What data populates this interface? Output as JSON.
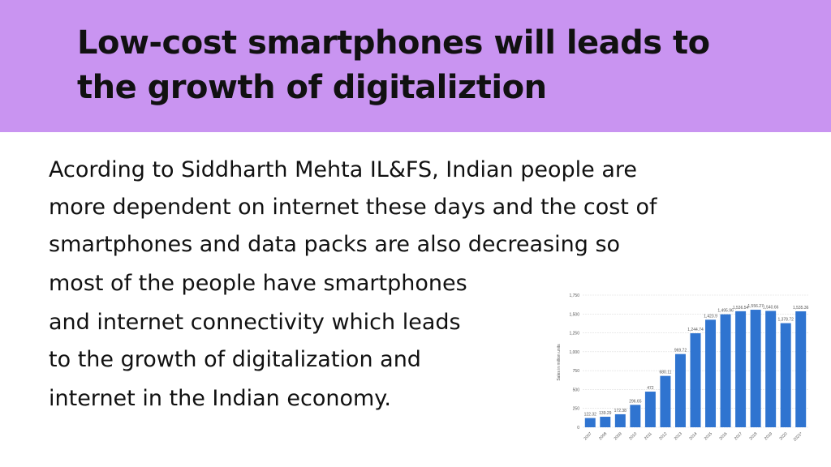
{
  "header": {
    "title": [
      "Low-cost smartphones will leads to",
      "the growth of digitaliztion"
    ]
  },
  "body": {
    "lines": [
      "Acording to Siddharth Mehta IL&FS, Indian people are",
      "more dependent on internet these days and the cost of",
      "smartphones and data packs are also decreasing so",
      "most of the people have smartphones",
      "and internet connectivity which leads",
      "to the growth of digitalization and",
      "internet in the Indian economy."
    ]
  },
  "chart_data": {
    "type": "bar",
    "y_label": "Sales in million units",
    "categories": [
      "2007",
      "2008",
      "2009",
      "2010",
      "2011",
      "2012",
      "2013",
      "2014",
      "2015",
      "2016",
      "2017",
      "2018",
      "2019",
      "2020",
      "2021*"
    ],
    "values": [
      122.32,
      139.29,
      172.38,
      296.65,
      472,
      680.11,
      969.72,
      1244.74,
      1423.9,
      1495.96,
      1536.54,
      1556.27,
      1540.66,
      1378.72,
      1535.36
    ],
    "value_labels": [
      "122.32",
      "139.29",
      "172.38",
      "296.65",
      "472",
      "680.11",
      "969.72",
      "1,244.74",
      "1,423.9",
      "1,495.96",
      "1,536.54",
      "1,556.27",
      "1,540.66",
      "1,378.72",
      "1,535.36"
    ],
    "color": "#2f74d0",
    "ylim": [
      0,
      1750
    ],
    "yticks": [
      0,
      250,
      500,
      750,
      {
        "value": 1000,
        "label": "1,000"
      },
      {
        "value": 1250,
        "label": "1,250"
      },
      {
        "value": 1500,
        "label": "1,500"
      },
      {
        "value": 1750,
        "label": "1,750"
      }
    ],
    "grid": true
  }
}
